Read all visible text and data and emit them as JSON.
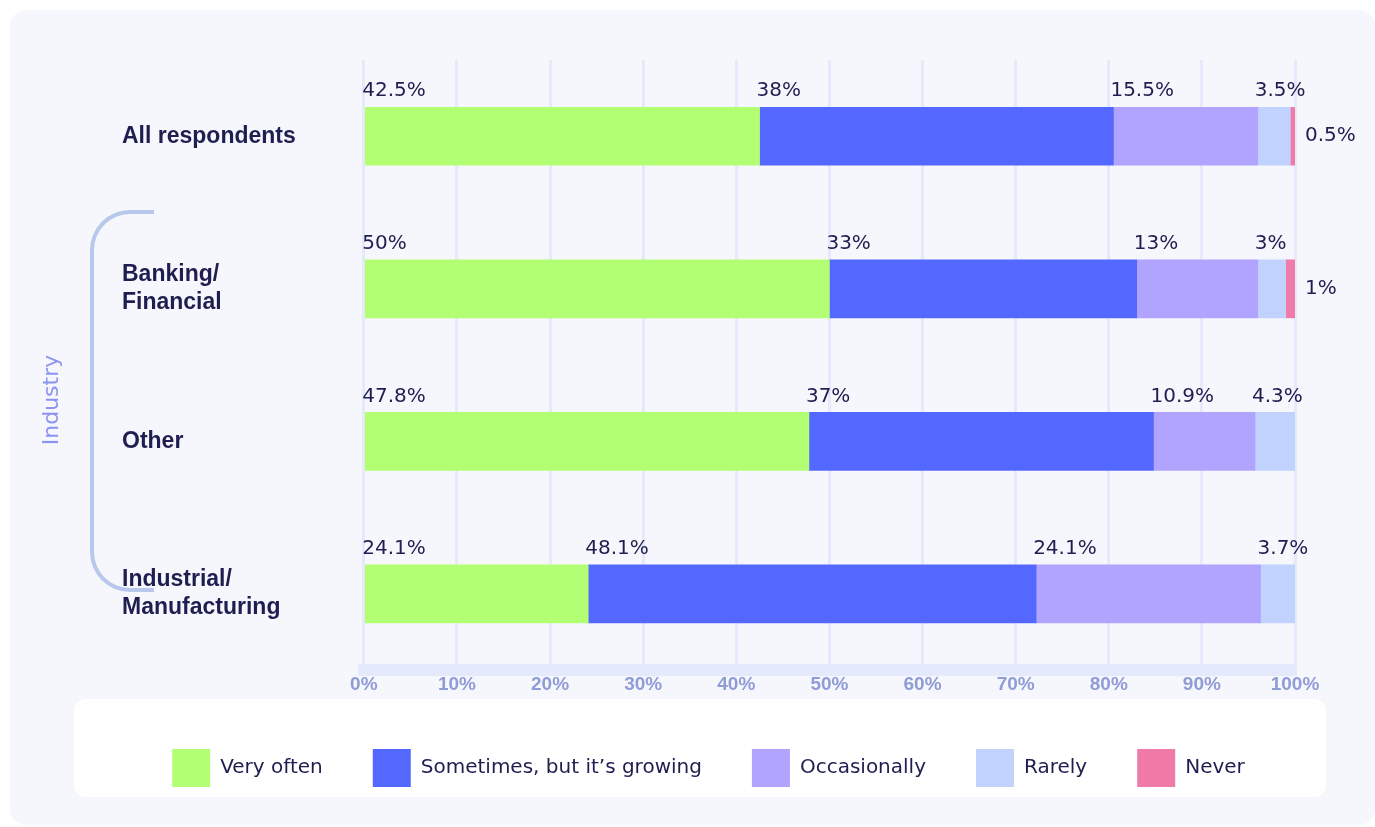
{
  "chart_data": {
    "type": "bar",
    "orientation": "horizontal",
    "stacked": true,
    "categories": [
      "All respondents",
      "Banking/Financial",
      "Other",
      "Industrial/Manufacturing"
    ],
    "ylabel": "Industry",
    "series": [
      {
        "name": "Very often",
        "color": "#b3ff73",
        "values": [
          42.5,
          50,
          47.8,
          24.1
        ],
        "value_labels": [
          "42.5%",
          "50%",
          "47.8%",
          "24.1%"
        ]
      },
      {
        "name": "Sometimes, but it’s growing",
        "color": "#5468ff",
        "values": [
          38,
          33,
          37,
          48.1
        ],
        "value_labels": [
          "38%",
          "33%",
          "37%",
          "48.1%"
        ]
      },
      {
        "name": "Occasionally",
        "color": "#b0a4ff",
        "values": [
          15.5,
          13,
          10.9,
          24.1
        ],
        "value_labels": [
          "15.5%",
          "13%",
          "10.9%",
          "24.1%"
        ]
      },
      {
        "name": "Rarely",
        "color": "#c2d2ff",
        "values": [
          3.5,
          3,
          4.3,
          3.7
        ],
        "value_labels": [
          "3.5%",
          "3%",
          "4.3%",
          "3.7%"
        ]
      },
      {
        "name": "Never",
        "color": "#f07aa8",
        "values": [
          0.5,
          1,
          null,
          null
        ],
        "value_labels": [
          "0.5%",
          "1%",
          null,
          null
        ]
      }
    ],
    "xlim": [
      0,
      100
    ],
    "xticks": [
      {
        "value": 0,
        "label": "0%"
      },
      {
        "value": 10,
        "label": "10%"
      },
      {
        "value": 20,
        "label": "20%"
      },
      {
        "value": 30,
        "label": "30%"
      },
      {
        "value": 40,
        "label": "40%"
      },
      {
        "value": 50,
        "label": "50%"
      },
      {
        "value": 60,
        "label": "60%"
      },
      {
        "value": 70,
        "label": "70%"
      },
      {
        "value": 80,
        "label": "80%"
      },
      {
        "value": 90,
        "label": "90%"
      },
      {
        "value": 100,
        "label": "100%"
      }
    ],
    "grid": "x",
    "legend": "bottom"
  }
}
